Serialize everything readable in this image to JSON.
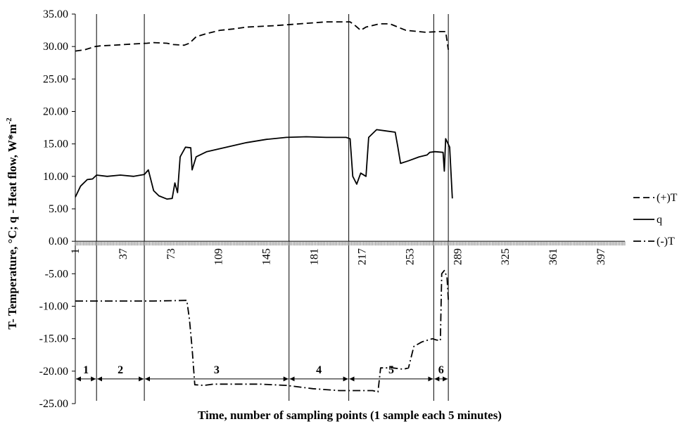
{
  "chart_data": {
    "type": "line",
    "xlabel": "Time, number of sampling points (1 sample each 5 minutes)",
    "ylabel": "T- Temperature, °C; q - Heat flow, W*m",
    "ylabel_sup": "-2",
    "ylim": [
      -25,
      35
    ],
    "y_ticks": [
      "35.00",
      "30.00",
      "25.00",
      "20.00",
      "15.00",
      "10.00",
      "5.00",
      "0.00",
      "-5.00",
      "-10.00",
      "-15.00",
      "-20.00",
      "-25.00"
    ],
    "x_range": [
      1,
      415
    ],
    "x_ticks": [
      "1",
      "37",
      "73",
      "109",
      "145",
      "181",
      "217",
      "253",
      "289",
      "325",
      "361",
      "397"
    ],
    "grid": false,
    "legend_position": "right",
    "phase_boundaries": [
      17,
      53,
      162,
      207,
      271,
      282
    ],
    "phases": [
      {
        "label": "1",
        "from": 1,
        "to": 17
      },
      {
        "label": "2",
        "from": 17,
        "to": 53
      },
      {
        "label": "3",
        "from": 53,
        "to": 162
      },
      {
        "label": "4",
        "from": 162,
        "to": 207
      },
      {
        "label": "5",
        "from": 207,
        "to": 271
      },
      {
        "label": "6",
        "from": 271,
        "to": 282
      }
    ],
    "phase_arrow_y": -21.2,
    "series": [
      {
        "name": "(+)T",
        "style": "dashed",
        "points": [
          [
            1,
            29.3
          ],
          [
            8,
            29.5
          ],
          [
            16,
            30.0
          ],
          [
            20,
            30.1
          ],
          [
            30,
            30.2
          ],
          [
            45,
            30.4
          ],
          [
            55,
            30.5
          ],
          [
            60,
            30.6
          ],
          [
            70,
            30.5
          ],
          [
            75,
            30.3
          ],
          [
            83,
            30.2
          ],
          [
            87,
            30.5
          ],
          [
            92,
            31.5
          ],
          [
            100,
            32.0
          ],
          [
            110,
            32.5
          ],
          [
            120,
            32.7
          ],
          [
            130,
            33.0
          ],
          [
            150,
            33.2
          ],
          [
            170,
            33.5
          ],
          [
            190,
            33.8
          ],
          [
            208,
            33.8
          ],
          [
            212,
            33.2
          ],
          [
            216,
            32.5
          ],
          [
            220,
            33.0
          ],
          [
            230,
            33.5
          ],
          [
            238,
            33.5
          ],
          [
            244,
            33.0
          ],
          [
            250,
            32.5
          ],
          [
            265,
            32.2
          ],
          [
            275,
            32.3
          ],
          [
            280,
            32.3
          ],
          [
            282,
            29.5
          ]
        ]
      },
      {
        "name": "q",
        "style": "solid",
        "points": [
          [
            1,
            6.8
          ],
          [
            5,
            8.5
          ],
          [
            10,
            9.5
          ],
          [
            14,
            9.6
          ],
          [
            17,
            10.2
          ],
          [
            25,
            10.0
          ],
          [
            35,
            10.2
          ],
          [
            45,
            10.0
          ],
          [
            53,
            10.3
          ],
          [
            56,
            11.0
          ],
          [
            60,
            7.8
          ],
          [
            64,
            7.0
          ],
          [
            70,
            6.5
          ],
          [
            74,
            6.6
          ],
          [
            76,
            9.0
          ],
          [
            78,
            7.5
          ],
          [
            80,
            13.0
          ],
          [
            84,
            14.5
          ],
          [
            88,
            14.4
          ],
          [
            89,
            11.0
          ],
          [
            92,
            13.0
          ],
          [
            100,
            13.8
          ],
          [
            115,
            14.5
          ],
          [
            130,
            15.2
          ],
          [
            145,
            15.7
          ],
          [
            160,
            16.0
          ],
          [
            175,
            16.1
          ],
          [
            190,
            16.0
          ],
          [
            205,
            16.0
          ],
          [
            208,
            15.8
          ],
          [
            210,
            10.0
          ],
          [
            213,
            8.8
          ],
          [
            216,
            10.5
          ],
          [
            220,
            10.0
          ],
          [
            222,
            16.0
          ],
          [
            228,
            17.2
          ],
          [
            235,
            17.0
          ],
          [
            242,
            16.8
          ],
          [
            244,
            14.5
          ],
          [
            246,
            12.0
          ],
          [
            252,
            12.4
          ],
          [
            260,
            13.0
          ],
          [
            266,
            13.3
          ],
          [
            268,
            13.7
          ],
          [
            272,
            13.8
          ],
          [
            278,
            13.7
          ],
          [
            279,
            10.8
          ],
          [
            280,
            15.8
          ],
          [
            283,
            14.5
          ],
          [
            285,
            6.6
          ]
        ]
      },
      {
        "name": "(-)T",
        "style": "dashdot",
        "points": [
          [
            1,
            -9.2
          ],
          [
            30,
            -9.2
          ],
          [
            60,
            -9.2
          ],
          [
            85,
            -9.1
          ],
          [
            87,
            -12.0
          ],
          [
            89,
            -16.5
          ],
          [
            91,
            -22.1
          ],
          [
            98,
            -22.2
          ],
          [
            105,
            -22.0
          ],
          [
            120,
            -22.0
          ],
          [
            140,
            -22.0
          ],
          [
            160,
            -22.2
          ],
          [
            180,
            -22.7
          ],
          [
            200,
            -23.0
          ],
          [
            210,
            -23.0
          ],
          [
            225,
            -23.0
          ],
          [
            229,
            -23.2
          ],
          [
            231,
            -19.5
          ],
          [
            240,
            -19.5
          ],
          [
            248,
            -19.7
          ],
          [
            252,
            -19.5
          ],
          [
            256,
            -16.2
          ],
          [
            262,
            -15.5
          ],
          [
            270,
            -15.0
          ],
          [
            273,
            -15.2
          ],
          [
            276,
            -15.3
          ],
          [
            277,
            -5.0
          ],
          [
            279,
            -4.5
          ],
          [
            281,
            -5.5
          ],
          [
            282,
            -9.0
          ]
        ]
      }
    ]
  }
}
